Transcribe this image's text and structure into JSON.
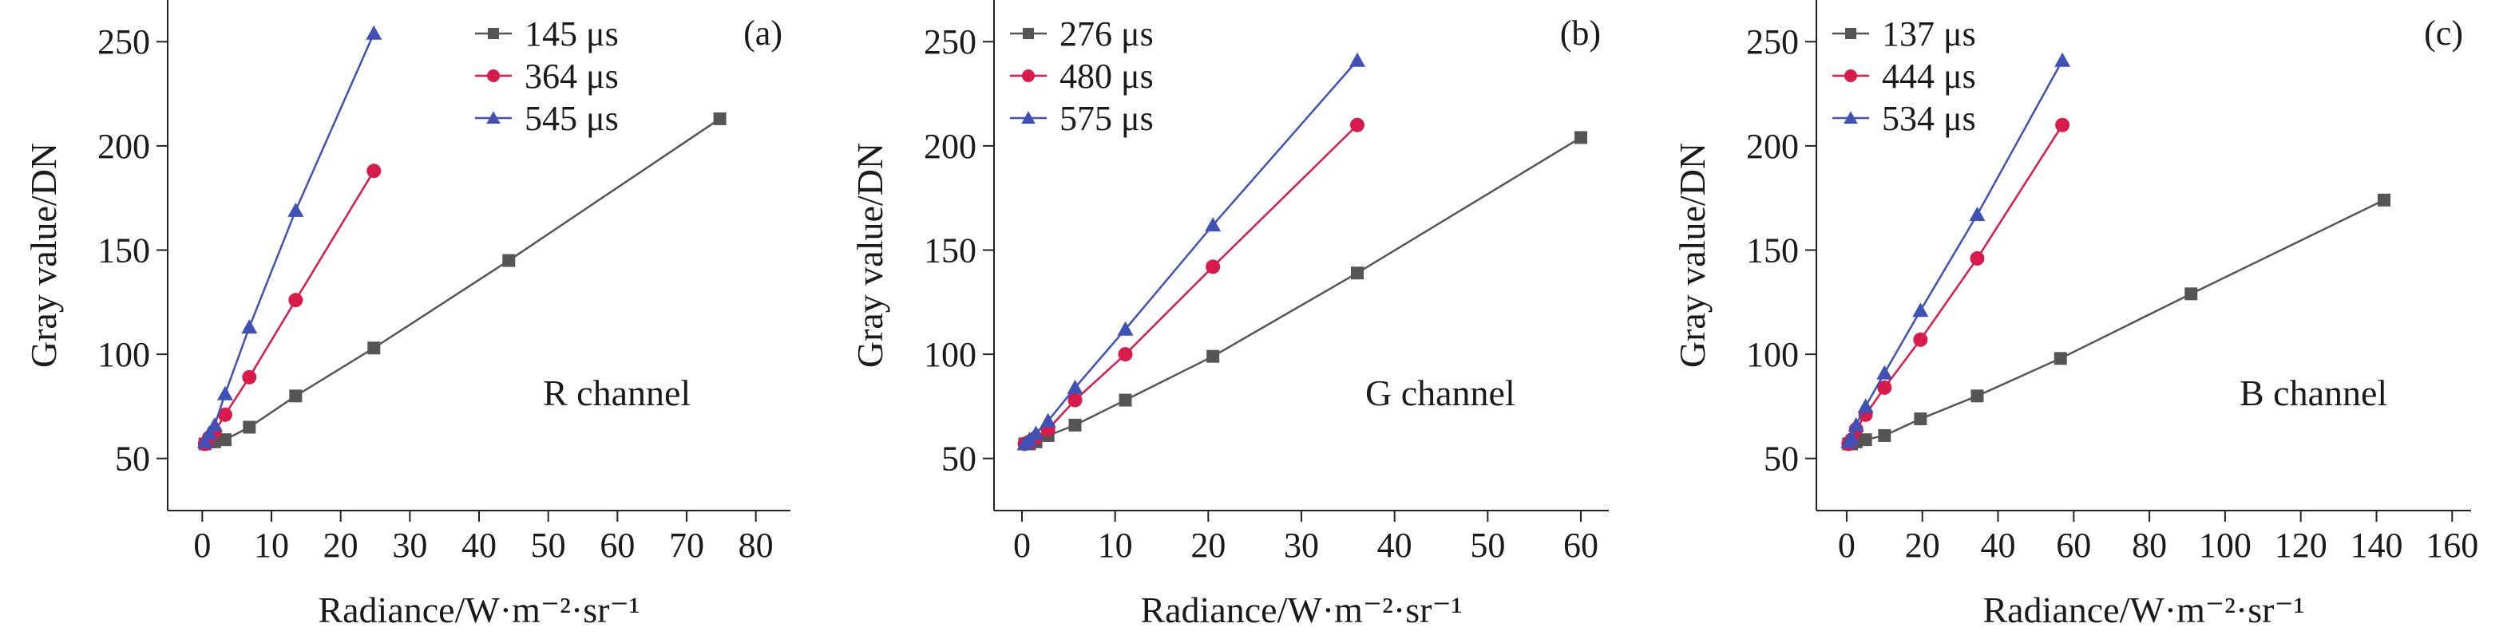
{
  "chart_data": [
    {
      "type": "line",
      "panel_label": "(a)",
      "annotation": "R channel",
      "xlabel": "Radiance/W·m⁻²·sr⁻¹",
      "ylabel": "Gray value/DN",
      "xlim": [
        -5,
        85
      ],
      "ylim": [
        25,
        270
      ],
      "xticks": [
        0,
        10,
        20,
        30,
        40,
        50,
        60,
        70,
        80
      ],
      "yticks": [
        50,
        100,
        150,
        200,
        250
      ],
      "legend_position": "top-center",
      "series": [
        {
          "name": "145 μs",
          "color": "#555555",
          "marker": "square",
          "x": [
            0.4,
            1.0,
            1.8,
            3.3,
            6.8,
            13.5,
            24.8,
            44.3,
            74.8
          ],
          "y": [
            57,
            58,
            58,
            59,
            65,
            80,
            103,
            145,
            213
          ]
        },
        {
          "name": "364 μs",
          "color": "#d81b4a",
          "marker": "circle",
          "x": [
            0.4,
            1.0,
            1.8,
            3.3,
            6.8,
            13.5,
            24.8
          ],
          "y": [
            57,
            60,
            63,
            71,
            89,
            126,
            188
          ]
        },
        {
          "name": "545 μs",
          "color": "#3f51b5",
          "marker": "triangle",
          "x": [
            0.4,
            1.0,
            1.8,
            3.3,
            6.8,
            13.5,
            24.8
          ],
          "y": [
            58,
            62,
            66,
            81,
            113,
            169,
            254
          ]
        }
      ]
    },
    {
      "type": "line",
      "panel_label": "(b)",
      "annotation": "G channel",
      "xlabel": "Radiance/W·m⁻²·sr⁻¹",
      "ylabel": "Gray value/DN",
      "xlim": [
        -3,
        63
      ],
      "ylim": [
        25,
        270
      ],
      "xticks": [
        0,
        10,
        20,
        30,
        40,
        50,
        60
      ],
      "yticks": [
        50,
        100,
        150,
        200,
        250
      ],
      "legend_position": "top-left",
      "series": [
        {
          "name": "276 μs",
          "color": "#555555",
          "marker": "square",
          "x": [
            0.3,
            0.8,
            1.5,
            2.8,
            5.7,
            11.1,
            20.5,
            36.0,
            60.0
          ],
          "y": [
            57,
            57,
            58,
            61,
            66,
            78,
            99,
            139,
            204
          ]
        },
        {
          "name": "480 μs",
          "color": "#d81b4a",
          "marker": "circle",
          "x": [
            0.3,
            0.8,
            1.5,
            2.8,
            5.7,
            11.1,
            20.5,
            36.0
          ],
          "y": [
            57,
            58,
            60,
            64,
            78,
            100,
            142,
            210
          ]
        },
        {
          "name": "575 μs",
          "color": "#3f51b5",
          "marker": "triangle",
          "x": [
            0.3,
            0.8,
            1.5,
            2.8,
            5.7,
            11.1,
            20.5,
            36.0
          ],
          "y": [
            57,
            59,
            62,
            68,
            84,
            112,
            162,
            241
          ]
        }
      ]
    },
    {
      "type": "line",
      "panel_label": "(c)",
      "annotation": "B channel",
      "xlabel": "Radiance/W·m⁻²·sr⁻¹",
      "ylabel": "Gray value/DN",
      "xlim": [
        -8,
        165
      ],
      "ylim": [
        25,
        270
      ],
      "xticks": [
        0,
        20,
        40,
        60,
        80,
        100,
        120,
        140,
        160
      ],
      "yticks": [
        50,
        100,
        150,
        200,
        250
      ],
      "legend_position": "top-left",
      "series": [
        {
          "name": "137 μs",
          "color": "#555555",
          "marker": "square",
          "x": [
            0.5,
            1.3,
            2.5,
            5.0,
            10.0,
            19.5,
            34.5,
            56.5,
            91.0,
            142.0
          ],
          "y": [
            57,
            57,
            58,
            59,
            61,
            69,
            80,
            98,
            129,
            174
          ]
        },
        {
          "name": "444 μs",
          "color": "#d81b4a",
          "marker": "circle",
          "x": [
            0.5,
            1.3,
            2.5,
            5.0,
            10.0,
            19.5,
            34.5,
            57.0
          ],
          "y": [
            57,
            59,
            64,
            71,
            84,
            107,
            146,
            210
          ]
        },
        {
          "name": "534 μs",
          "color": "#3f51b5",
          "marker": "triangle",
          "x": [
            0.5,
            1.3,
            2.5,
            5.0,
            10.0,
            19.5,
            34.5,
            57.0
          ],
          "y": [
            58,
            60,
            66,
            75,
            91,
            121,
            167,
            241
          ]
        }
      ]
    }
  ]
}
